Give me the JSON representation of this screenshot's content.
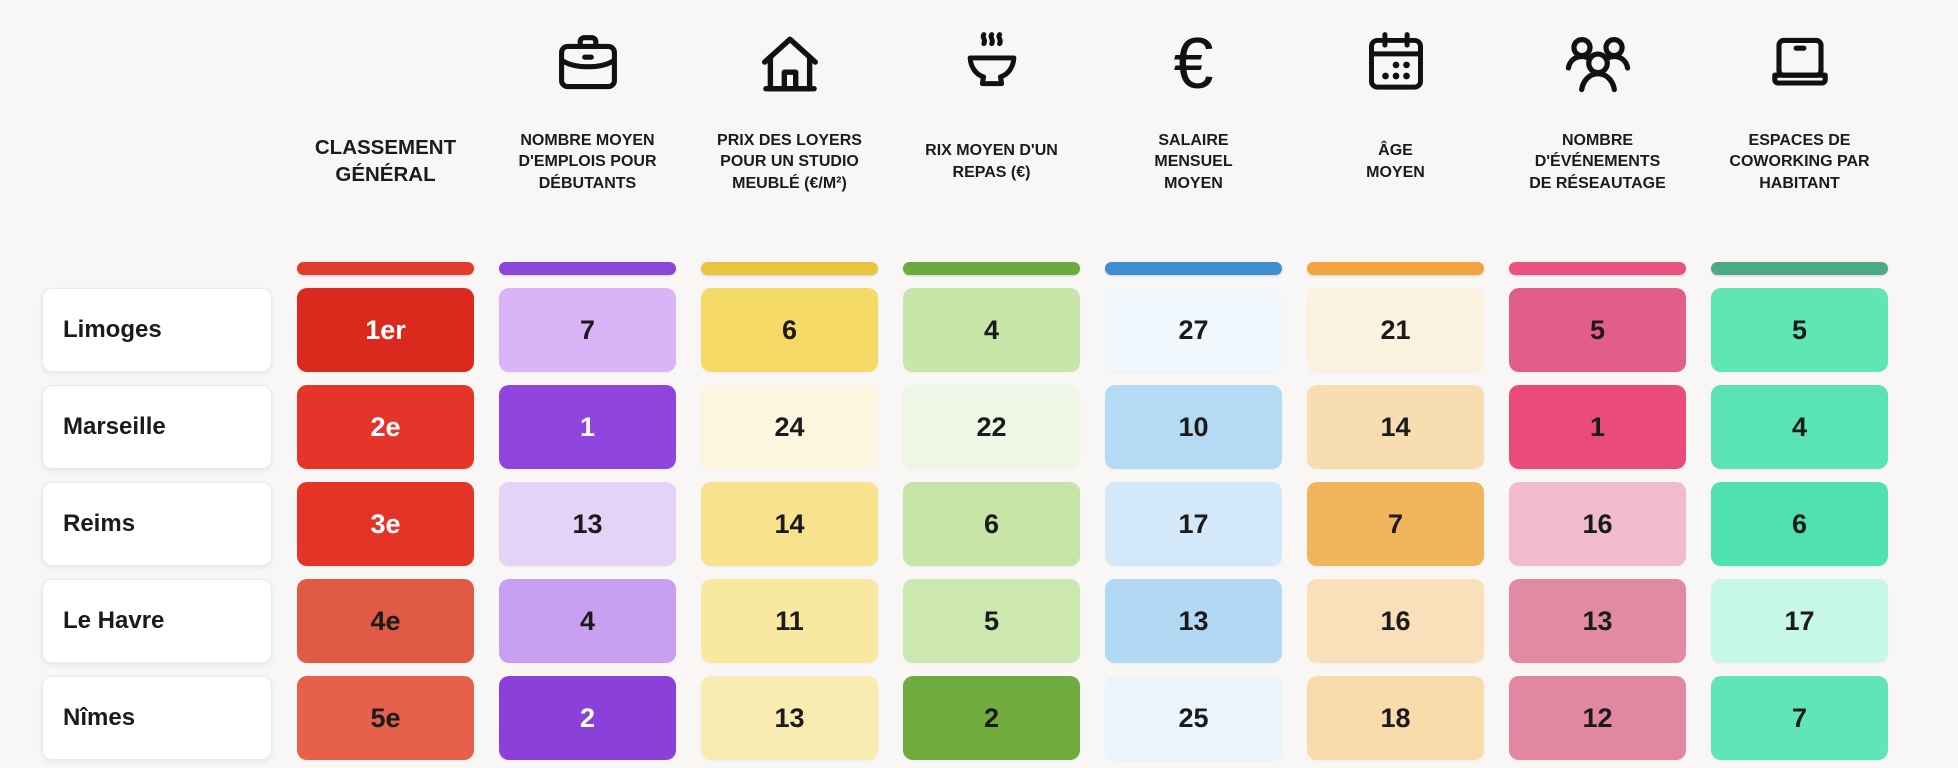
{
  "page": {
    "background": "#F8F7F6"
  },
  "header": {
    "columns": [
      {
        "label": "CLASSEMENT\nGÉNÉRAL",
        "icon": null,
        "pill": "#E23B2C"
      },
      {
        "label": "NOMBRE MOYEN\nD'EMPLOIS POUR\nDÉBUTANTS",
        "icon": "briefcase-icon",
        "pill": "#8B45D9"
      },
      {
        "label": "PRIX DES LOYERS\nPOUR UN STUDIO\nMEUBLÉ (€/M²)",
        "icon": "house-icon",
        "pill": "#E9C43E"
      },
      {
        "label": "RIX MOYEN D'UN\nREPAS (€)",
        "icon": "soup-bowl-icon",
        "pill": "#6BAA3C"
      },
      {
        "label": "SALAIRE\nMENSUEL\nMOYEN",
        "icon": "euro-icon",
        "pill": "#3E8FD0"
      },
      {
        "label": "ÂGE\nMOYEN",
        "icon": "calendar-icon",
        "pill": "#F2A53E"
      },
      {
        "label": "NOMBRE\nD'ÉVÉNEMENTS\nDE RÉSEAUTAGE",
        "icon": "people-group-icon",
        "pill": "#EA5380"
      },
      {
        "label": "ESPACES DE\nCOWORKING PAR\nHABITANT",
        "icon": "laptop-icon",
        "pill": "#4BAA85"
      }
    ]
  },
  "rows": [
    {
      "city": "Limoges",
      "cells": [
        {
          "v": "1er",
          "bg": "#DC291D",
          "fg": "#FFFFFF"
        },
        {
          "v": "7",
          "bg": "#D9B4F6"
        },
        {
          "v": "6",
          "bg": "#F6DA66"
        },
        {
          "v": "4",
          "bg": "#C9E6A9"
        },
        {
          "v": "27",
          "bg": "#F1F8FD"
        },
        {
          "v": "21",
          "bg": "#FCF2E0"
        },
        {
          "v": "5",
          "bg": "#E25E8A"
        },
        {
          "v": "5",
          "bg": "#60E5B5"
        }
      ]
    },
    {
      "city": "Marseille",
      "cells": [
        {
          "v": "2e",
          "bg": "#E5352B",
          "fg": "#FFFFFF"
        },
        {
          "v": "1",
          "bg": "#8E44DD",
          "fg": "#FFFFFF"
        },
        {
          "v": "24",
          "bg": "#FCF6DF"
        },
        {
          "v": "22",
          "bg": "#EEF7E6"
        },
        {
          "v": "10",
          "bg": "#B4DAF4"
        },
        {
          "v": "14",
          "bg": "#F8DDB0"
        },
        {
          "v": "1",
          "bg": "#EA4B7A"
        },
        {
          "v": "4",
          "bg": "#5BE4B3"
        }
      ]
    },
    {
      "city": "Reims",
      "cells": [
        {
          "v": "3e",
          "bg": "#E43428",
          "fg": "#FFFFFF"
        },
        {
          "v": "13",
          "bg": "#E4D2F7"
        },
        {
          "v": "14",
          "bg": "#F8E28E"
        },
        {
          "v": "6",
          "bg": "#C7E5A7"
        },
        {
          "v": "17",
          "bg": "#D3E8F8"
        },
        {
          "v": "7",
          "bg": "#F2B45C"
        },
        {
          "v": "16",
          "bg": "#F2BACE"
        },
        {
          "v": "6",
          "bg": "#50E2AE"
        }
      ]
    },
    {
      "city": "Le Havre",
      "cells": [
        {
          "v": "4e",
          "bg": "#E15A45"
        },
        {
          "v": "4",
          "bg": "#C9A0F1"
        },
        {
          "v": "11",
          "bg": "#F8E8A0"
        },
        {
          "v": "5",
          "bg": "#CCE8AE"
        },
        {
          "v": "13",
          "bg": "#B2D9F3"
        },
        {
          "v": "16",
          "bg": "#F8E0BA"
        },
        {
          "v": "13",
          "bg": "#E289A4"
        },
        {
          "v": "17",
          "bg": "#C7F7E5"
        }
      ]
    },
    {
      "city": "Nîmes",
      "cells": [
        {
          "v": "5e",
          "bg": "#E6604B"
        },
        {
          "v": "2",
          "bg": "#8C40DA",
          "fg": "#FFFFFF"
        },
        {
          "v": "13",
          "bg": "#F9ECB2"
        },
        {
          "v": "2",
          "bg": "#6FAC3D"
        },
        {
          "v": "25",
          "bg": "#EAF4FB"
        },
        {
          "v": "18",
          "bg": "#F8DCAC"
        },
        {
          "v": "12",
          "bg": "#E287A2"
        },
        {
          "v": "7",
          "bg": "#60E6B6"
        }
      ]
    }
  ],
  "chart_data": {
    "type": "table",
    "title": "",
    "categories": [
      "Limoges",
      "Marseille",
      "Reims",
      "Le Havre",
      "Nîmes"
    ],
    "columns": [
      "CLASSEMENT GÉNÉRAL",
      "NOMBRE MOYEN D'EMPLOIS POUR DÉBUTANTS",
      "PRIX DES LOYERS POUR UN STUDIO MEUBLÉ (€/M²)",
      "RIX MOYEN D'UN REPAS (€)",
      "SALAIRE MENSUEL MOYEN",
      "ÂGE MOYEN",
      "NOMBRE D'ÉVÉNEMENTS DE RÉSEAUTAGE",
      "ESPACES DE COWORKING PAR HABITANT"
    ],
    "column_colors": [
      "#E23B2C",
      "#8B45D9",
      "#E9C43E",
      "#6BAA3C",
      "#3E8FD0",
      "#F2A53E",
      "#EA5380",
      "#4BAA85"
    ],
    "values": [
      [
        "1er",
        7,
        6,
        4,
        27,
        21,
        5,
        5
      ],
      [
        "2e",
        1,
        24,
        22,
        10,
        14,
        1,
        4
      ],
      [
        "3e",
        13,
        14,
        6,
        17,
        7,
        16,
        6
      ],
      [
        "4e",
        4,
        11,
        5,
        13,
        16,
        13,
        17
      ],
      [
        "5e",
        2,
        13,
        2,
        25,
        18,
        12,
        7
      ]
    ],
    "legend_position": "none",
    "notes": "heatmap-style ranking table; lower numbers shown with more saturated column color"
  }
}
